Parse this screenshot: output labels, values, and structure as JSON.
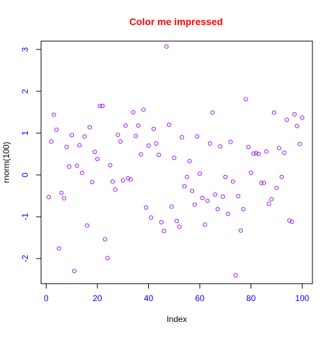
{
  "chart_data": {
    "type": "scatter",
    "title": "Color me impressed",
    "xlabel": "Index",
    "ylabel": "rnorm(100)",
    "xlim": [
      -2,
      104
    ],
    "ylim": [
      -2.6,
      3.2
    ],
    "x_ticks": [
      0,
      20,
      40,
      60,
      80,
      100
    ],
    "y_ticks": [
      -2,
      -1,
      0,
      1,
      2,
      3
    ],
    "x_tick_labels": [
      "0",
      "20",
      "40",
      "60",
      "80",
      "100"
    ],
    "y_tick_labels": [
      "-2",
      "-1",
      "0",
      "1",
      "2",
      "3"
    ],
    "grid": false,
    "legend": "none",
    "colors": {
      "title": "#ff0000",
      "points": "#a020f0",
      "tick_labels": "#0000ff",
      "axis": "#000000"
    },
    "series": [
      {
        "x": [
          1,
          2,
          3,
          4,
          5,
          6,
          7,
          8,
          9,
          10,
          11,
          12,
          13,
          14,
          15,
          16,
          17,
          18,
          19,
          20,
          21,
          22,
          23,
          24,
          25,
          26,
          27,
          28,
          29,
          30,
          31,
          32,
          33,
          34,
          35,
          36,
          37,
          38,
          39,
          40,
          41,
          42,
          43,
          44,
          45,
          46,
          47,
          48,
          49,
          50,
          51,
          52,
          53,
          54,
          55,
          56,
          57,
          58,
          59,
          60,
          61,
          62,
          63,
          64,
          65,
          66,
          67,
          68,
          69,
          70,
          71,
          72,
          73,
          74,
          75,
          76,
          77,
          78,
          79,
          80,
          81,
          82,
          83,
          84,
          85,
          86,
          87,
          88,
          89,
          90,
          91,
          92,
          93,
          94,
          95,
          96,
          97,
          98,
          99,
          100
        ],
        "values": [
          -0.53,
          0.8,
          1.44,
          1.08,
          -1.76,
          -0.43,
          -0.56,
          0.67,
          0.2,
          0.95,
          -2.3,
          0.22,
          0.71,
          0.05,
          0.92,
          -1.21,
          1.14,
          -0.17,
          0.55,
          0.38,
          1.65,
          1.65,
          -1.54,
          -1.99,
          0.23,
          -0.16,
          -0.35,
          0.96,
          0.8,
          -0.13,
          1.18,
          -0.08,
          -0.11,
          1.5,
          0.93,
          1.18,
          0.49,
          1.56,
          -0.78,
          0.7,
          -1.02,
          1.1,
          0.75,
          0.48,
          -1.13,
          -1.34,
          3.07,
          1.2,
          -0.76,
          0.41,
          -1.1,
          -1.24,
          0.9,
          -0.27,
          -0.05,
          0.33,
          -0.38,
          -0.71,
          0.92,
          0.03,
          -0.55,
          -1.19,
          -0.62,
          0.75,
          1.49,
          -0.47,
          -0.82,
          0.68,
          -0.52,
          -0.05,
          -0.93,
          0.79,
          -0.16,
          -2.4,
          -0.51,
          -1.33,
          -0.82,
          1.81,
          0.67,
          0.05,
          0.51,
          0.52,
          0.5,
          -0.19,
          -0.19,
          0.56,
          -0.69,
          -0.58,
          1.49,
          -0.31,
          0.64,
          -0.05,
          0.53,
          1.32,
          -1.09,
          -1.12,
          1.45,
          1.17,
          0.74,
          1.37
        ]
      }
    ]
  }
}
